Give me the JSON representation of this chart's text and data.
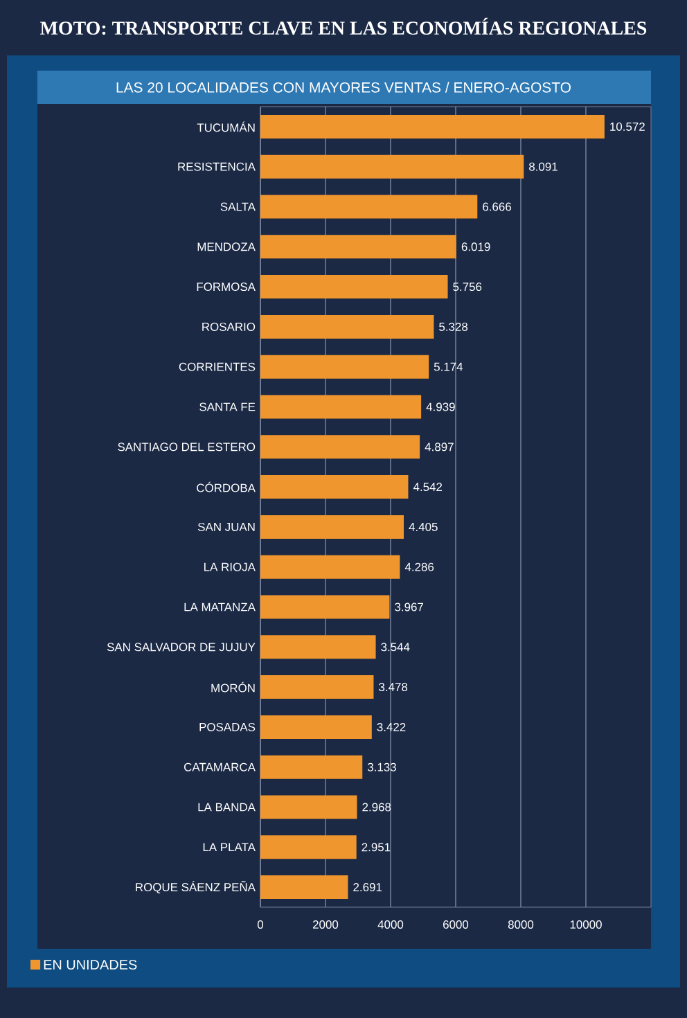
{
  "chart_data": {
    "type": "bar",
    "orientation": "horizontal",
    "title": "MOTO: TRANSPORTE CLAVE EN LAS ECONOMÍAS REGIONALES",
    "subtitle": "LAS 20 LOCALIDADES CON MAYORES VENTAS / ENERO-AGOSTO",
    "categories": [
      "TUCUMÁN",
      "RESISTENCIA",
      "SALTA",
      "MENDOZA",
      "FORMOSA",
      "ROSARIO",
      "CORRIENTES",
      "SANTA FE",
      "SANTIAGO DEL ESTERO",
      "CÓRDOBA",
      "SAN JUAN",
      "LA RIOJA",
      "LA MATANZA",
      "SAN SALVADOR DE JUJUY",
      "MORÓN",
      "POSADAS",
      "CATAMARCA",
      "LA BANDA",
      "LA PLATA",
      "ROQUE SÁENZ PEÑA"
    ],
    "series": [
      {
        "name": "EN UNIDADES",
        "color": "#f0962e",
        "values": [
          10572,
          8091,
          6666,
          6019,
          5756,
          5328,
          5174,
          4939,
          4897,
          4542,
          4405,
          4286,
          3967,
          3544,
          3478,
          3422,
          3133,
          2968,
          2951,
          2691
        ],
        "value_labels": [
          "10.572",
          "8.091",
          "6.666",
          "6.019",
          "5.756",
          "5.328",
          "5.174",
          "4.939",
          "4.897",
          "4.542",
          "4.405",
          "4.286",
          "3.967",
          "3.544",
          "3.478",
          "3.422",
          "3.133",
          "2.968",
          "2.951",
          "2.691"
        ]
      }
    ],
    "xlim": [
      0,
      12000
    ],
    "xticks": [
      0,
      2000,
      4000,
      6000,
      8000,
      10000
    ],
    "grid": "x",
    "legend": "bottom left"
  }
}
